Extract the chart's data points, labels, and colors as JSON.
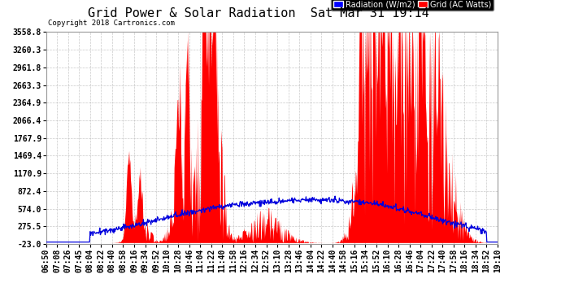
{
  "title": "Grid Power & Solar Radiation  Sat Mar 31 19:14",
  "copyright": "Copyright 2018 Cartronics.com",
  "legend_radiation": "Radiation (W/m2)",
  "legend_grid": "Grid (AC Watts)",
  "yticks": [
    3558.8,
    3260.3,
    2961.8,
    2663.3,
    2364.9,
    2066.4,
    1767.9,
    1469.4,
    1170.9,
    872.4,
    574.0,
    275.5,
    -23.0
  ],
  "ymin": -23.0,
  "ymax": 3558.8,
  "background_color": "#ffffff",
  "plot_bg_color": "#ffffff",
  "grid_color": "#bbbbbb",
  "radiation_color": "#0000dd",
  "grid_power_color": "#ff0000",
  "title_fontsize": 11,
  "tick_fontsize": 7,
  "xtick_labels": [
    "06:50",
    "07:08",
    "07:26",
    "07:45",
    "08:04",
    "08:22",
    "08:40",
    "08:58",
    "09:16",
    "09:34",
    "09:52",
    "10:10",
    "10:28",
    "10:46",
    "11:04",
    "11:22",
    "11:40",
    "11:58",
    "12:16",
    "12:34",
    "12:52",
    "13:10",
    "13:28",
    "13:46",
    "14:04",
    "14:22",
    "14:40",
    "14:58",
    "15:16",
    "15:34",
    "15:52",
    "16:10",
    "16:28",
    "16:46",
    "17:04",
    "17:22",
    "17:40",
    "17:58",
    "18:16",
    "18:34",
    "18:52",
    "19:10"
  ]
}
